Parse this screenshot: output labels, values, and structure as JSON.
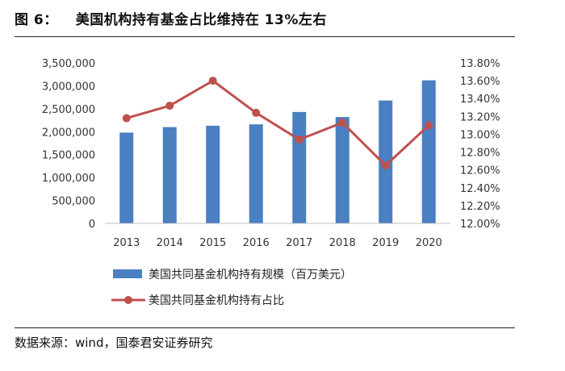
{
  "figure": {
    "number": "图 6：",
    "title": "美国机构持有基金占比维持在 13%左右",
    "source": "数据来源：wind，国泰君安证券研究"
  },
  "chart_data": {
    "type": "bar+line",
    "categories": [
      "2013",
      "2014",
      "2015",
      "2016",
      "2017",
      "2018",
      "2019",
      "2020"
    ],
    "series": [
      {
        "name": "美国共同基金机构持有规模（百万美元）",
        "type": "bar",
        "axis": "left",
        "color": "#4a7fc1",
        "values": [
          1980000,
          2100000,
          2130000,
          2160000,
          2430000,
          2320000,
          2680000,
          3120000
        ]
      },
      {
        "name": "美国共同基金机构持有占比",
        "type": "line",
        "axis": "right",
        "color": "#c0504d",
        "values": [
          13.18,
          13.32,
          13.6,
          13.24,
          12.94,
          13.13,
          12.65,
          13.1
        ]
      }
    ],
    "y_left": {
      "min": 0,
      "max": 3500000,
      "ticks": [
        "0",
        "500,000",
        "1,000,000",
        "1,500,000",
        "2,000,000",
        "2,500,000",
        "3,000,000",
        "3,500,000"
      ]
    },
    "y_right": {
      "min": 12.0,
      "max": 13.8,
      "ticks": [
        "12.00%",
        "12.20%",
        "12.40%",
        "12.60%",
        "12.80%",
        "13.00%",
        "13.20%",
        "13.40%",
        "13.60%",
        "13.80%"
      ]
    },
    "grid": false,
    "legend_position": "bottom"
  }
}
